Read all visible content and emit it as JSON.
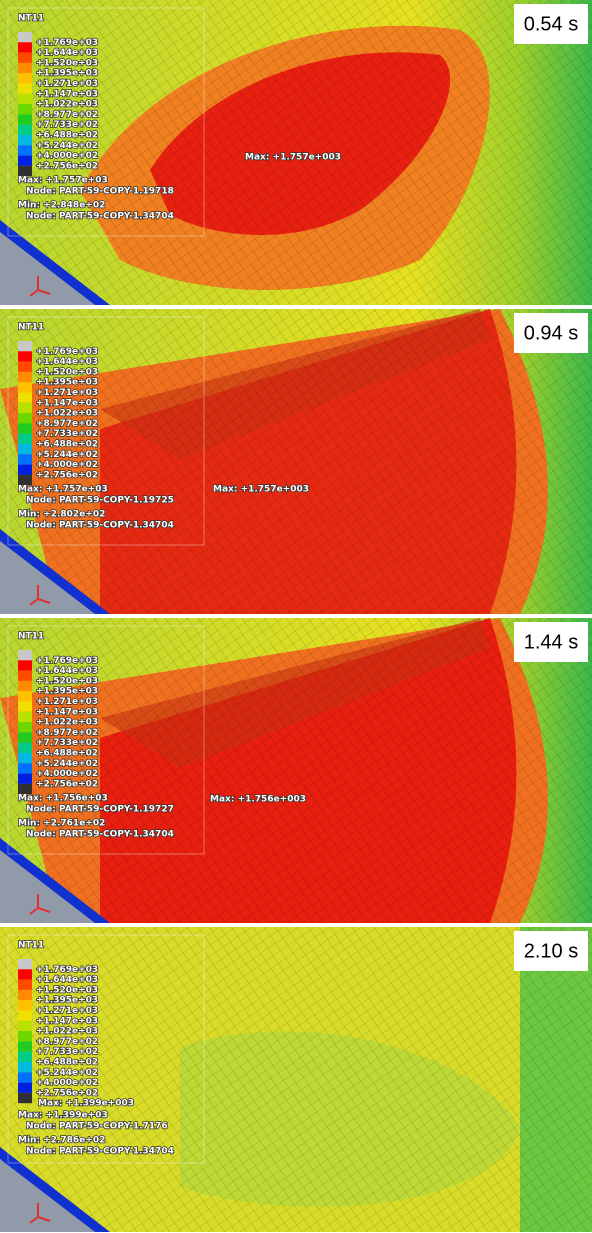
{
  "panels": [
    {
      "time": "0.54 s",
      "legend": {
        "title": "NT11",
        "labels": [
          "+1.769e+03",
          "+1.644e+03",
          "+1.520e+03",
          "+1.395e+03",
          "+1.271e+03",
          "+1.147e+03",
          "+1.022e+03",
          "+8.977e+02",
          "+7.733e+02",
          "+6.488e+02",
          "+5.244e+02",
          "+4.000e+02",
          "+2.756e+02"
        ]
      },
      "max": "Max: +1.757e+03",
      "max_node": "Node: PART-59-COPY-1.19718",
      "min": "Min: +2.848e+02",
      "min_node": "Node: PART-59-COPY-1.34704",
      "annotation": "Max: +1.757e+003"
    },
    {
      "time": "0.94 s",
      "legend": {
        "title": "NT11",
        "labels": [
          "+1.769e+03",
          "+1.644e+03",
          "+1.520e+03",
          "+1.395e+03",
          "+1.271e+03",
          "+1.147e+03",
          "+1.022e+03",
          "+8.977e+02",
          "+7.733e+02",
          "+6.488e+02",
          "+5.244e+02",
          "+4.000e+02",
          "+2.756e+02"
        ]
      },
      "max": "Max: +1.757e+03",
      "max_node": "Node: PART-59-COPY-1.19725",
      "min": "Min: +2.802e+02",
      "min_node": "Node: PART-59-COPY-1.34704",
      "annotation": "Max: +1.757e+003"
    },
    {
      "time": "1.44 s",
      "legend": {
        "title": "NT11",
        "labels": [
          "+1.769e+03",
          "+1.644e+03",
          "+1.520e+03",
          "+1.395e+03",
          "+1.271e+03",
          "+1.147e+03",
          "+1.022e+03",
          "+8.977e+02",
          "+7.733e+02",
          "+6.488e+02",
          "+5.244e+02",
          "+4.000e+02",
          "+2.756e+02"
        ]
      },
      "max": "Max: +1.756e+03",
      "max_node": "Node: PART-59-COPY-1.19727",
      "min": "Min: +2.761e+02",
      "min_node": "Node: PART-59-COPY-1.34704",
      "annotation": "Max: +1.756e+003"
    },
    {
      "time": "2.10 s",
      "legend": {
        "title": "NT11",
        "labels": [
          "+1.769e+03",
          "+1.644e+03",
          "+1.520e+03",
          "+1.395e+03",
          "+1.271e+03",
          "+1.147e+03",
          "+1.022e+03",
          "+8.977e+02",
          "+7.733e+02",
          "+6.488e+02",
          "+5.244e+02",
          "+4.000e+02",
          "+2.756e+02"
        ]
      },
      "max": "Max: +1.399e+03",
      "max_node": "Node: PART-59-COPY-1.7176",
      "min": "Min: +2.786e+02",
      "min_node": "Node: PART-59-COPY-1.34704",
      "annotation": "Max: +1.399e+003"
    }
  ]
}
